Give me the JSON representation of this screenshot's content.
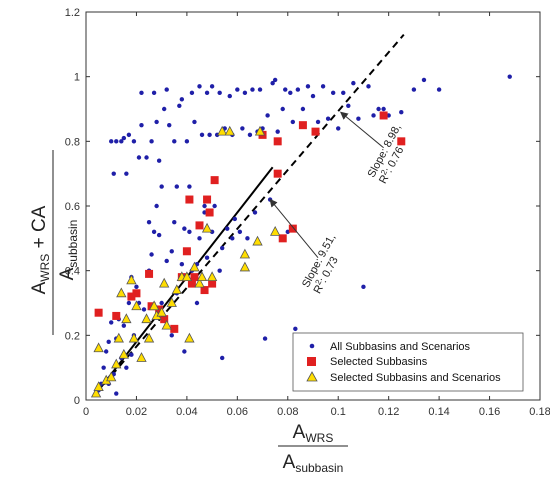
{
  "chart_data": {
    "type": "scatter",
    "title": "",
    "xlim": [
      0,
      0.18
    ],
    "ylim": [
      0,
      1.2
    ],
    "x_ticks": [
      "0",
      "0.02",
      "0.04",
      "0.06",
      "0.08",
      "0.1",
      "0.12",
      "0.14",
      "0.16",
      "0.18"
    ],
    "y_ticks": [
      "0",
      "0.2",
      "0.4",
      "0.6",
      "0.8",
      "1",
      "1.2"
    ],
    "xlabel": {
      "numerator": "A",
      "numerator_sub": "WRS",
      "denominator": "A",
      "denominator_sub": "subbasin"
    },
    "ylabel": {
      "numerator": "A",
      "numerator_sub": "WRS",
      "numerator_suffix": " + CA",
      "denominator": "A",
      "denominator_sub": "subbasin"
    },
    "legend_position": "bottom-right",
    "series": [
      {
        "name": "All Subbasins and Scenarios",
        "marker": "dot",
        "color": "#1f1fa8",
        "points": [
          [
            0.005,
            0.03
          ],
          [
            0.006,
            0.05
          ],
          [
            0.007,
            0.1
          ],
          [
            0.008,
            0.15
          ],
          [
            0.009,
            0.05
          ],
          [
            0.009,
            0.18
          ],
          [
            0.01,
            0.24
          ],
          [
            0.01,
            0.8
          ],
          [
            0.011,
            0.08
          ],
          [
            0.011,
            0.7
          ],
          [
            0.012,
            0.02
          ],
          [
            0.012,
            0.19
          ],
          [
            0.012,
            0.8
          ],
          [
            0.013,
            0.25
          ],
          [
            0.014,
            0.13
          ],
          [
            0.014,
            0.8
          ],
          [
            0.015,
            0.23
          ],
          [
            0.015,
            0.81
          ],
          [
            0.016,
            0.1
          ],
          [
            0.016,
            0.7
          ],
          [
            0.017,
            0.3
          ],
          [
            0.017,
            0.82
          ],
          [
            0.018,
            0.14
          ],
          [
            0.018,
            0.38
          ],
          [
            0.019,
            0.2
          ],
          [
            0.019,
            0.8
          ],
          [
            0.02,
            0.35
          ],
          [
            0.021,
            0.75
          ],
          [
            0.021,
            0.3
          ],
          [
            0.022,
            0.85
          ],
          [
            0.022,
            0.95
          ],
          [
            0.023,
            0.28
          ],
          [
            0.024,
            0.75
          ],
          [
            0.025,
            0.4
          ],
          [
            0.025,
            0.55
          ],
          [
            0.026,
            0.45
          ],
          [
            0.026,
            0.8
          ],
          [
            0.027,
            0.52
          ],
          [
            0.027,
            0.95
          ],
          [
            0.028,
            0.6
          ],
          [
            0.028,
            0.86
          ],
          [
            0.029,
            0.74
          ],
          [
            0.029,
            0.51
          ],
          [
            0.03,
            0.66
          ],
          [
            0.03,
            0.3
          ],
          [
            0.031,
            0.9
          ],
          [
            0.032,
            0.43
          ],
          [
            0.032,
            0.96
          ],
          [
            0.033,
            0.85
          ],
          [
            0.034,
            0.46
          ],
          [
            0.034,
            0.2
          ],
          [
            0.035,
            0.55
          ],
          [
            0.035,
            0.8
          ],
          [
            0.036,
            0.66
          ],
          [
            0.036,
            0.33
          ],
          [
            0.037,
            0.91
          ],
          [
            0.038,
            0.93
          ],
          [
            0.038,
            0.42
          ],
          [
            0.039,
            0.15
          ],
          [
            0.039,
            0.53
          ],
          [
            0.04,
            0.8
          ],
          [
            0.041,
            0.66
          ],
          [
            0.041,
            0.52
          ],
          [
            0.042,
            0.4
          ],
          [
            0.042,
            0.95
          ],
          [
            0.043,
            0.86
          ],
          [
            0.044,
            0.3
          ],
          [
            0.044,
            0.42
          ],
          [
            0.045,
            0.5
          ],
          [
            0.045,
            0.97
          ],
          [
            0.046,
            0.82
          ],
          [
            0.047,
            0.58
          ],
          [
            0.047,
            0.6
          ],
          [
            0.048,
            0.44
          ],
          [
            0.048,
            0.95
          ],
          [
            0.049,
            0.82
          ],
          [
            0.05,
            0.52
          ],
          [
            0.05,
            0.97
          ],
          [
            0.051,
            0.6
          ],
          [
            0.052,
            0.82
          ],
          [
            0.053,
            0.4
          ],
          [
            0.053,
            0.95
          ],
          [
            0.054,
            0.13
          ],
          [
            0.054,
            0.47
          ],
          [
            0.055,
            0.84
          ],
          [
            0.056,
            0.53
          ],
          [
            0.057,
            0.94
          ],
          [
            0.058,
            0.5
          ],
          [
            0.058,
            0.82
          ],
          [
            0.059,
            0.56
          ],
          [
            0.06,
            0.96
          ],
          [
            0.061,
            0.52
          ],
          [
            0.062,
            0.84
          ],
          [
            0.063,
            0.95
          ],
          [
            0.064,
            0.5
          ],
          [
            0.065,
            0.82
          ],
          [
            0.066,
            0.96
          ],
          [
            0.067,
            0.58
          ],
          [
            0.068,
            0.83
          ],
          [
            0.069,
            0.96
          ],
          [
            0.07,
            0.84
          ],
          [
            0.071,
            0.19
          ],
          [
            0.072,
            0.88
          ],
          [
            0.073,
            0.62
          ],
          [
            0.074,
            0.98
          ],
          [
            0.075,
            0.99
          ],
          [
            0.076,
            0.83
          ],
          [
            0.078,
            0.9
          ],
          [
            0.079,
            0.96
          ],
          [
            0.08,
            0.52
          ],
          [
            0.081,
            0.95
          ],
          [
            0.082,
            0.86
          ],
          [
            0.083,
            0.22
          ],
          [
            0.084,
            0.96
          ],
          [
            0.086,
            0.9
          ],
          [
            0.088,
            0.97
          ],
          [
            0.09,
            0.94
          ],
          [
            0.092,
            0.86
          ],
          [
            0.094,
            0.97
          ],
          [
            0.096,
            0.87
          ],
          [
            0.098,
            0.95
          ],
          [
            0.1,
            0.84
          ],
          [
            0.102,
            0.95
          ],
          [
            0.104,
            0.91
          ],
          [
            0.106,
            0.98
          ],
          [
            0.108,
            0.87
          ],
          [
            0.11,
            0.35
          ],
          [
            0.112,
            0.97
          ],
          [
            0.114,
            0.88
          ],
          [
            0.116,
            0.9
          ],
          [
            0.118,
            0.9
          ],
          [
            0.12,
            0.88
          ],
          [
            0.125,
            0.89
          ],
          [
            0.13,
            0.96
          ],
          [
            0.134,
            0.99
          ],
          [
            0.14,
            0.96
          ],
          [
            0.168,
            1.0
          ]
        ]
      },
      {
        "name": "Selected Subbasins",
        "marker": "square",
        "color": "#e02020",
        "points": [
          [
            0.005,
            0.27
          ],
          [
            0.012,
            0.26
          ],
          [
            0.018,
            0.32
          ],
          [
            0.02,
            0.33
          ],
          [
            0.025,
            0.39
          ],
          [
            0.026,
            0.29
          ],
          [
            0.029,
            0.28
          ],
          [
            0.031,
            0.25
          ],
          [
            0.035,
            0.22
          ],
          [
            0.038,
            0.38
          ],
          [
            0.04,
            0.46
          ],
          [
            0.041,
            0.62
          ],
          [
            0.042,
            0.36
          ],
          [
            0.043,
            0.38
          ],
          [
            0.045,
            0.54
          ],
          [
            0.047,
            0.34
          ],
          [
            0.048,
            0.62
          ],
          [
            0.049,
            0.58
          ],
          [
            0.05,
            0.36
          ],
          [
            0.051,
            0.68
          ],
          [
            0.07,
            0.82
          ],
          [
            0.076,
            0.8
          ],
          [
            0.076,
            0.7
          ],
          [
            0.078,
            0.5
          ],
          [
            0.082,
            0.53
          ],
          [
            0.086,
            0.85
          ],
          [
            0.091,
            0.83
          ],
          [
            0.118,
            0.88
          ],
          [
            0.125,
            0.8
          ]
        ]
      },
      {
        "name": "Selected Subbasins and Scenarios",
        "marker": "triangle",
        "color": "#ffdd00",
        "points": [
          [
            0.004,
            0.02
          ],
          [
            0.005,
            0.04
          ],
          [
            0.005,
            0.16
          ],
          [
            0.008,
            0.06
          ],
          [
            0.01,
            0.07
          ],
          [
            0.012,
            0.11
          ],
          [
            0.013,
            0.19
          ],
          [
            0.014,
            0.33
          ],
          [
            0.015,
            0.14
          ],
          [
            0.016,
            0.25
          ],
          [
            0.018,
            0.37
          ],
          [
            0.019,
            0.19
          ],
          [
            0.02,
            0.29
          ],
          [
            0.022,
            0.13
          ],
          [
            0.024,
            0.25
          ],
          [
            0.025,
            0.19
          ],
          [
            0.027,
            0.29
          ],
          [
            0.028,
            0.26
          ],
          [
            0.03,
            0.27
          ],
          [
            0.031,
            0.36
          ],
          [
            0.032,
            0.23
          ],
          [
            0.034,
            0.3
          ],
          [
            0.036,
            0.34
          ],
          [
            0.038,
            0.38
          ],
          [
            0.04,
            0.38
          ],
          [
            0.041,
            0.19
          ],
          [
            0.043,
            0.41
          ],
          [
            0.045,
            0.36
          ],
          [
            0.046,
            0.38
          ],
          [
            0.048,
            0.53
          ],
          [
            0.05,
            0.38
          ],
          [
            0.054,
            0.83
          ],
          [
            0.057,
            0.83
          ],
          [
            0.063,
            0.41
          ],
          [
            0.063,
            0.45
          ],
          [
            0.068,
            0.49
          ],
          [
            0.069,
            0.83
          ],
          [
            0.075,
            0.52
          ]
        ]
      }
    ],
    "fit_lines": [
      {
        "style": "solid",
        "x": [
          0.004,
          0.074
        ],
        "y": [
          0.02,
          0.72
        ]
      },
      {
        "style": "dashed",
        "x": [
          0.004,
          0.126
        ],
        "y": [
          0.02,
          1.13
        ]
      }
    ],
    "annotations": [
      {
        "line1": "Slope: 9.51,",
        "line2_pre": "R",
        "line2_sup": "2",
        "line2_post": ": 0.73",
        "arrow_to": [
          0.073,
          0.62
        ],
        "arrow_from": [
          0.092,
          0.44
        ]
      },
      {
        "line1": "Slope: 8.98,",
        "line2_pre": "R",
        "line2_sup": "2",
        "line2_post": ": 0.76",
        "arrow_to": [
          0.101,
          0.89
        ],
        "arrow_from": [
          0.118,
          0.78
        ]
      }
    ]
  }
}
